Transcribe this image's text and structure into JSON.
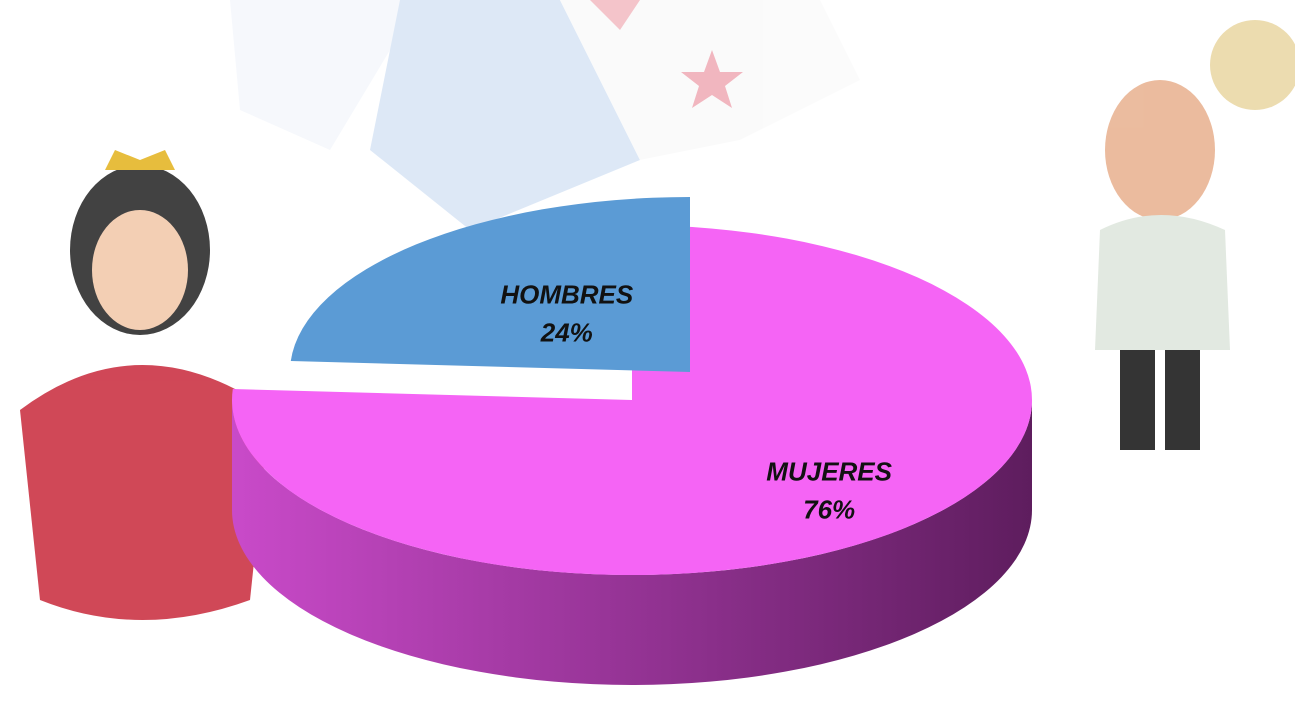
{
  "chart_data": {
    "type": "pie",
    "categories": [
      "MUJERES",
      "HOMBRES"
    ],
    "values": [
      76,
      24
    ],
    "value_labels": [
      "76%",
      "24%"
    ],
    "colors": [
      "#f564f5",
      "#5b9bd5"
    ]
  }
}
